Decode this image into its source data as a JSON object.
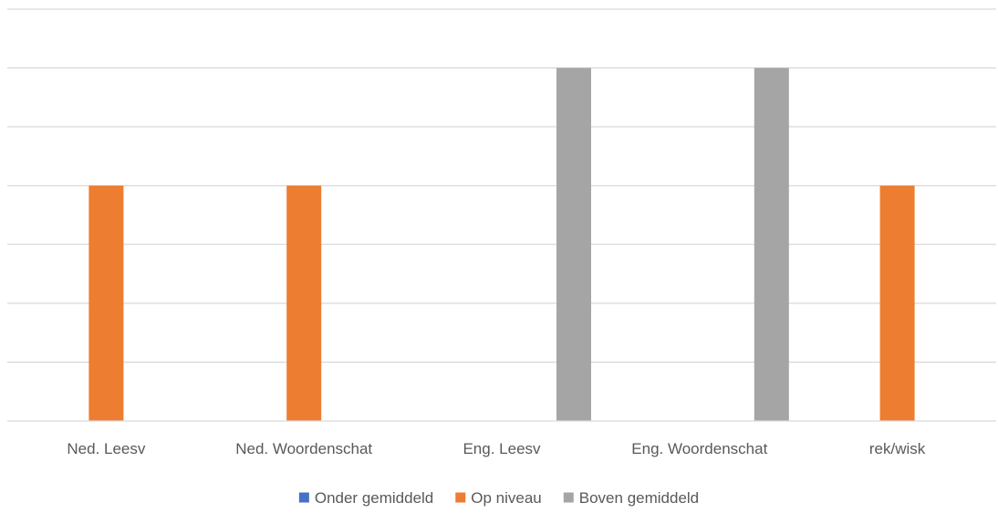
{
  "chart_data": {
    "type": "bar",
    "categories": [
      "Ned. Leesv",
      "Ned. Woordenschat",
      "Eng. Leesv",
      "Eng. Woordenschat",
      "rek/wisk"
    ],
    "series": [
      {
        "name": "Onder gemiddeld",
        "color": "#4472C4",
        "values": [
          0,
          0,
          0,
          0,
          0
        ]
      },
      {
        "name": "Op niveau",
        "color": "#ED7D31",
        "values": [
          4,
          4,
          0,
          0,
          4
        ]
      },
      {
        "name": "Boven gemiddeld",
        "color": "#A5A5A5",
        "values": [
          0,
          0,
          6,
          6,
          0
        ]
      }
    ],
    "ylim": [
      0,
      7
    ],
    "gridlines": true,
    "legend_position": "bottom",
    "title": "",
    "xlabel": "",
    "ylabel": ""
  }
}
